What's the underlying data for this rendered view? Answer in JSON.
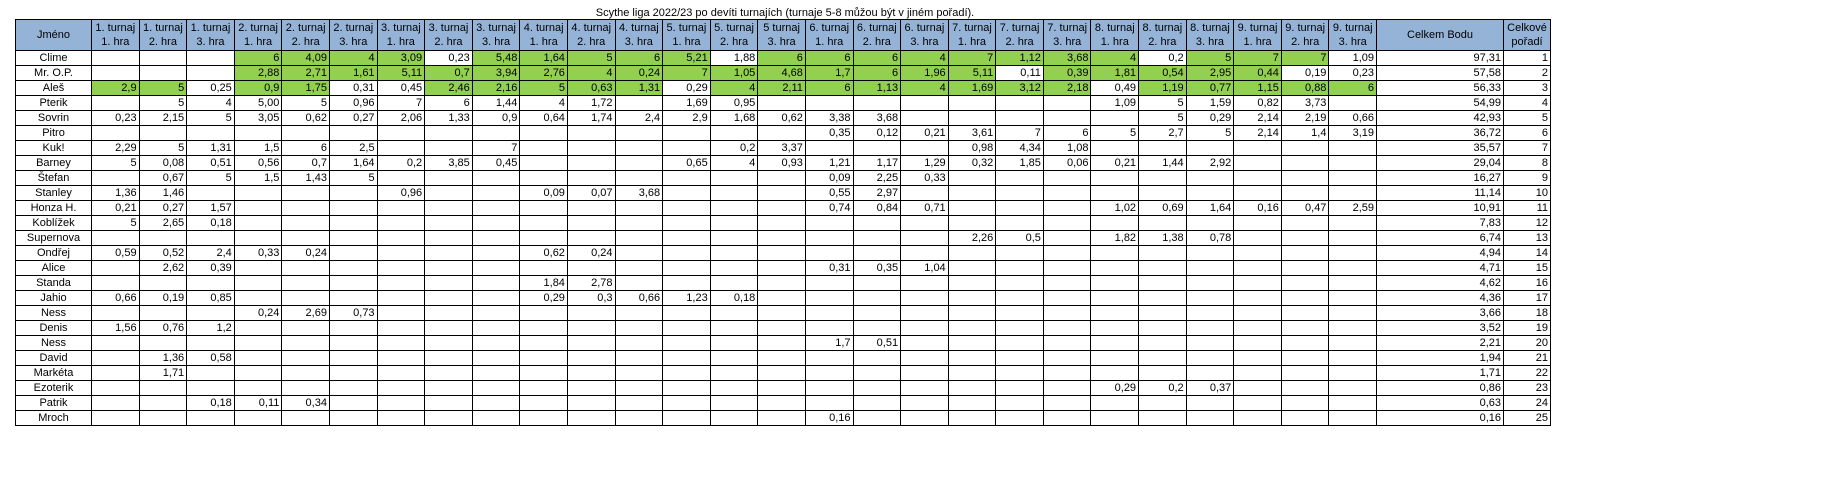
{
  "title": "Scythe liga 2022/23 po devíti turnajích (turnaje 5-8 můžou být v jiném pořadí).",
  "headers": {
    "name": "Jméno",
    "games": [
      [
        "1. turnaj",
        "1. hra"
      ],
      [
        "1. turnaj",
        "2. hra"
      ],
      [
        "1. turnaj",
        "3. hra"
      ],
      [
        "2. turnaj",
        "1. hra"
      ],
      [
        "2. turnaj",
        "2. hra"
      ],
      [
        "2. turnaj",
        "3. hra"
      ],
      [
        "3. turnaj",
        "1. hra"
      ],
      [
        "3. turnaj",
        "2. hra"
      ],
      [
        "3. turnaj",
        "3. hra"
      ],
      [
        "4. turnaj",
        "1. hra"
      ],
      [
        "4. turnaj",
        "2. hra"
      ],
      [
        "4. turnaj",
        "3. hra"
      ],
      [
        "5. turnaj",
        "1. hra"
      ],
      [
        "5. turnaj",
        "2. hra"
      ],
      [
        "5 turnaj",
        "3. hra"
      ],
      [
        "6. turnaj",
        "1. hra"
      ],
      [
        "6. turnaj",
        "2. hra"
      ],
      [
        "6. turnaj",
        "3. hra"
      ],
      [
        "7. turnaj",
        "1. hra"
      ],
      [
        "7. turnaj",
        "2. hra"
      ],
      [
        "7. turnaj",
        "3. hra"
      ],
      [
        "8. turnaj",
        "1. hra"
      ],
      [
        "8. turnaj",
        "2. hra"
      ],
      [
        "8. turnaj",
        "3. hra"
      ],
      [
        "9. turnaj",
        "1. hra"
      ],
      [
        "9. turnaj",
        "2. hra"
      ],
      [
        "9. turnaj",
        "3. hra"
      ]
    ],
    "total": "Celkem Bodu",
    "rank": [
      "Celkové",
      "pořadí"
    ]
  },
  "rows": [
    {
      "name": "Clime",
      "scores": [
        "",
        "",
        "",
        "6",
        "4,09",
        "4",
        "3,09",
        "0,23",
        "5,48",
        "1,64",
        "5",
        "6",
        "5,21",
        "1,88",
        "6",
        "6",
        "6",
        "4",
        "7",
        "1,12",
        "3,68",
        "4",
        "0,2",
        "5",
        "7",
        "7",
        "1,09"
      ],
      "green": [
        3,
        4,
        5,
        6,
        8,
        9,
        10,
        11,
        12,
        14,
        15,
        16,
        17,
        18,
        19,
        20,
        21,
        23,
        24,
        25
      ],
      "total": "97,31",
      "rank": "1"
    },
    {
      "name": "Mr. O.P.",
      "scores": [
        "",
        "",
        "",
        "2,88",
        "2,71",
        "1,61",
        "5,11",
        "0,7",
        "3,94",
        "2,76",
        "4",
        "0,24",
        "7",
        "1,05",
        "4,68",
        "1,7",
        "6",
        "1,96",
        "5,11",
        "0,11",
        "0,39",
        "1,81",
        "0,54",
        "2,95",
        "0,44",
        "0,19",
        "0,23"
      ],
      "green": [
        3,
        4,
        5,
        6,
        7,
        8,
        9,
        10,
        11,
        12,
        13,
        14,
        15,
        16,
        17,
        18,
        20,
        21,
        22,
        23,
        24
      ],
      "total": "57,58",
      "rank": "2"
    },
    {
      "name": "Aleš",
      "scores": [
        "2,9",
        "5",
        "0,25",
        "0,9",
        "1,75",
        "0,31",
        "0,45",
        "2,46",
        "2,16",
        "5",
        "0,63",
        "1,31",
        "0,29",
        "4",
        "2,11",
        "6",
        "1,13",
        "4",
        "1,69",
        "3,12",
        "2,18",
        "0,49",
        "1,19",
        "0,77",
        "1,15",
        "0,88",
        "6"
      ],
      "green": [
        0,
        1,
        3,
        4,
        7,
        8,
        9,
        10,
        11,
        13,
        14,
        15,
        16,
        17,
        18,
        19,
        20,
        22,
        23,
        24,
        25,
        26
      ],
      "total": "56,33",
      "rank": "3"
    },
    {
      "name": "Pterik",
      "scores": [
        "",
        "5",
        "4",
        "5,00",
        "5",
        "0,96",
        "7",
        "6",
        "1,44",
        "4",
        "1,72",
        "",
        "1,69",
        "0,95",
        "",
        "",
        "",
        "",
        "",
        "",
        "",
        "1,09",
        "5",
        "1,59",
        "0,82",
        "3,73",
        ""
      ],
      "green": [],
      "total": "54,99",
      "rank": "4"
    },
    {
      "name": "Sovrin",
      "scores": [
        "0,23",
        "2,15",
        "5",
        "3,05",
        "0,62",
        "0,27",
        "2,06",
        "1,33",
        "0,9",
        "0,64",
        "1,74",
        "2,4",
        "2,9",
        "1,68",
        "0,62",
        "3,38",
        "3,68",
        "",
        "",
        "",
        "",
        "",
        "5",
        "0,29",
        "2,14",
        "2,19",
        "0,66"
      ],
      "green": [],
      "total": "42,93",
      "rank": "5"
    },
    {
      "name": "Pitro",
      "scores": [
        "",
        "",
        "",
        "",
        "",
        "",
        "",
        "",
        "",
        "",
        "",
        "",
        "",
        "",
        "",
        "0,35",
        "0,12",
        "0,21",
        "3,61",
        "7",
        "6",
        "5",
        "2,7",
        "5",
        "2,14",
        "1,4",
        "3,19"
      ],
      "green": [],
      "total": "36,72",
      "rank": "6"
    },
    {
      "name": "Kuk!",
      "scores": [
        "2,29",
        "5",
        "1,31",
        "1,5",
        "6",
        "2,5",
        "",
        "",
        "7",
        "",
        "",
        "",
        "",
        "0,2",
        "3,37",
        "",
        "",
        "",
        "0,98",
        "4,34",
        "1,08",
        "",
        "",
        "",
        "",
        "",
        ""
      ],
      "green": [],
      "total": "35,57",
      "rank": "7"
    },
    {
      "name": "Barney",
      "scores": [
        "5",
        "0,08",
        "0,51",
        "0,56",
        "0,7",
        "1,64",
        "0,2",
        "3,85",
        "0,45",
        "",
        "",
        "",
        "0,65",
        "4",
        "0,93",
        "1,21",
        "1,17",
        "1,29",
        "0,32",
        "1,85",
        "0,06",
        "0,21",
        "1,44",
        "2,92",
        "",
        "",
        ""
      ],
      "green": [],
      "total": "29,04",
      "rank": "8"
    },
    {
      "name": "Štefan",
      "scores": [
        "",
        "0,67",
        "5",
        "1,5",
        "1,43",
        "5",
        "",
        "",
        "",
        "",
        "",
        "",
        "",
        "",
        "",
        "0,09",
        "2,25",
        "0,33",
        "",
        "",
        "",
        "",
        "",
        "",
        "",
        "",
        ""
      ],
      "green": [],
      "total": "16,27",
      "rank": "9"
    },
    {
      "name": "Stanley",
      "scores": [
        "1,36",
        "1,46",
        "",
        "",
        "",
        "",
        "0,96",
        "",
        "",
        "0,09",
        "0,07",
        "3,68",
        "",
        "",
        "",
        "0,55",
        "2,97",
        "",
        "",
        "",
        "",
        "",
        "",
        "",
        "",
        "",
        ""
      ],
      "green": [],
      "total": "11,14",
      "rank": "10"
    },
    {
      "name": "Honza H.",
      "scores": [
        "0,21",
        "0,27",
        "1,57",
        "",
        "",
        "",
        "",
        "",
        "",
        "",
        "",
        "",
        "",
        "",
        "",
        "0,74",
        "0,84",
        "0,71",
        "",
        "",
        "",
        "1,02",
        "0,69",
        "1,64",
        "0,16",
        "0,47",
        "2,59"
      ],
      "green": [],
      "total": "10,91",
      "rank": "11"
    },
    {
      "name": "Koblížek",
      "scores": [
        "5",
        "2,65",
        "0,18",
        "",
        "",
        "",
        "",
        "",
        "",
        "",
        "",
        "",
        "",
        "",
        "",
        "",
        "",
        "",
        "",
        "",
        "",
        "",
        "",
        "",
        "",
        "",
        ""
      ],
      "green": [],
      "total": "7,83",
      "rank": "12"
    },
    {
      "name": "Supernova",
      "scores": [
        "",
        "",
        "",
        "",
        "",
        "",
        "",
        "",
        "",
        "",
        "",
        "",
        "",
        "",
        "",
        "",
        "",
        "",
        "2,26",
        "0,5",
        "",
        "1,82",
        "1,38",
        "0,78",
        "",
        "",
        ""
      ],
      "green": [],
      "total": "6,74",
      "rank": "13"
    },
    {
      "name": "Ondřej",
      "scores": [
        "0,59",
        "0,52",
        "2,4",
        "0,33",
        "0,24",
        "",
        "",
        "",
        "",
        "0,62",
        "0,24",
        "",
        "",
        "",
        "",
        "",
        "",
        "",
        "",
        "",
        "",
        "",
        "",
        "",
        "",
        "",
        ""
      ],
      "green": [],
      "total": "4,94",
      "rank": "14"
    },
    {
      "name": "Alice",
      "scores": [
        "",
        "2,62",
        "0,39",
        "",
        "",
        "",
        "",
        "",
        "",
        "",
        "",
        "",
        "",
        "",
        "",
        "0,31",
        "0,35",
        "1,04",
        "",
        "",
        "",
        "",
        "",
        "",
        "",
        "",
        ""
      ],
      "green": [],
      "total": "4,71",
      "rank": "15"
    },
    {
      "name": "Standa",
      "scores": [
        "",
        "",
        "",
        "",
        "",
        "",
        "",
        "",
        "",
        "1,84",
        "2,78",
        "",
        "",
        "",
        "",
        "",
        "",
        "",
        "",
        "",
        "",
        "",
        "",
        "",
        "",
        "",
        ""
      ],
      "green": [],
      "total": "4,62",
      "rank": "16"
    },
    {
      "name": "Jahio",
      "scores": [
        "0,66",
        "0,19",
        "0,85",
        "",
        "",
        "",
        "",
        "",
        "",
        "0,29",
        "0,3",
        "0,66",
        "1,23",
        "0,18",
        "",
        "",
        "",
        "",
        "",
        "",
        "",
        "",
        "",
        "",
        "",
        "",
        ""
      ],
      "green": [],
      "total": "4,36",
      "rank": "17"
    },
    {
      "name": "Ness",
      "scores": [
        "",
        "",
        "",
        "0,24",
        "2,69",
        "0,73",
        "",
        "",
        "",
        "",
        "",
        "",
        "",
        "",
        "",
        "",
        "",
        "",
        "",
        "",
        "",
        "",
        "",
        "",
        "",
        "",
        ""
      ],
      "green": [],
      "total": "3,66",
      "rank": "18"
    },
    {
      "name": "Denis",
      "scores": [
        "1,56",
        "0,76",
        "1,2",
        "",
        "",
        "",
        "",
        "",
        "",
        "",
        "",
        "",
        "",
        "",
        "",
        "",
        "",
        "",
        "",
        "",
        "",
        "",
        "",
        "",
        "",
        "",
        ""
      ],
      "green": [],
      "total": "3,52",
      "rank": "19"
    },
    {
      "name": "Ness",
      "scores": [
        "",
        "",
        "",
        "",
        "",
        "",
        "",
        "",
        "",
        "",
        "",
        "",
        "",
        "",
        "",
        "1,7",
        "0,51",
        "",
        "",
        "",
        "",
        "",
        "",
        "",
        "",
        "",
        ""
      ],
      "green": [],
      "total": "2,21",
      "rank": "20"
    },
    {
      "name": "David",
      "scores": [
        "",
        "1,36",
        "0,58",
        "",
        "",
        "",
        "",
        "",
        "",
        "",
        "",
        "",
        "",
        "",
        "",
        "",
        "",
        "",
        "",
        "",
        "",
        "",
        "",
        "",
        "",
        "",
        ""
      ],
      "green": [],
      "total": "1,94",
      "rank": "21"
    },
    {
      "name": "Markéta",
      "scores": [
        "",
        "1,71",
        "",
        "",
        "",
        "",
        "",
        "",
        "",
        "",
        "",
        "",
        "",
        "",
        "",
        "",
        "",
        "",
        "",
        "",
        "",
        "",
        "",
        "",
        "",
        "",
        ""
      ],
      "green": [],
      "total": "1,71",
      "rank": "22"
    },
    {
      "name": "Ezoterik",
      "scores": [
        "",
        "",
        "",
        "",
        "",
        "",
        "",
        "",
        "",
        "",
        "",
        "",
        "",
        "",
        "",
        "",
        "",
        "",
        "",
        "",
        "",
        "0,29",
        "0,2",
        "0,37",
        "",
        "",
        ""
      ],
      "green": [],
      "total": "0,86",
      "rank": "23"
    },
    {
      "name": "Patrik",
      "scores": [
        "",
        "",
        "0,18",
        "0,11",
        "0,34",
        "",
        "",
        "",
        "",
        "",
        "",
        "",
        "",
        "",
        "",
        "",
        "",
        "",
        "",
        "",
        "",
        "",
        "",
        "",
        "",
        "",
        ""
      ],
      "green": [],
      "total": "0,63",
      "rank": "24"
    },
    {
      "name": "Mroch",
      "scores": [
        "",
        "",
        "",
        "",
        "",
        "",
        "",
        "",
        "",
        "",
        "",
        "",
        "",
        "",
        "",
        "0,16",
        "",
        "",
        "",
        "",
        "",
        "",
        "",
        "",
        "",
        "",
        ""
      ],
      "green": [],
      "total": "0,16",
      "rank": "25"
    }
  ],
  "colors": {
    "header": "#95b3d7",
    "highlight": "#92d050"
  }
}
